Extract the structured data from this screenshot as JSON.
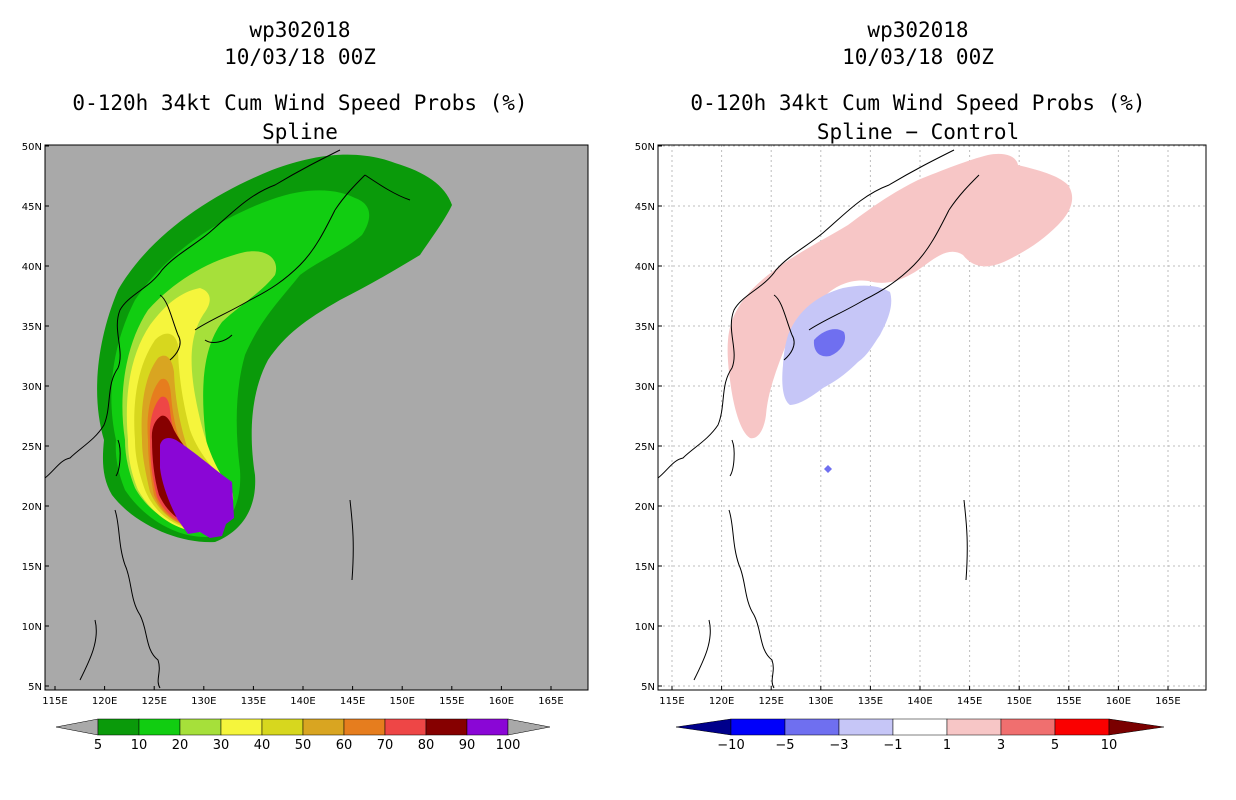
{
  "left": {
    "title_code": "wp302018",
    "title_date": "10/03/18 00Z",
    "title_product": "0-120h 34kt Cum Wind Speed Probs (%)",
    "title_sub": "Spline",
    "colorbar": {
      "labels": [
        "5",
        "10",
        "20",
        "30",
        "40",
        "50",
        "60",
        "70",
        "80",
        "90",
        "100"
      ],
      "colors": [
        "#0a9a0a",
        "#11cd11",
        "#a6e03a",
        "#f5f53c",
        "#d7d71e",
        "#d9a521",
        "#e67d1e",
        "#ee4646",
        "#860000",
        "#8a06d6"
      ],
      "end_color": "#a9a9a9"
    },
    "bg": "#a9a9a9"
  },
  "right": {
    "title_code": "wp302018",
    "title_date": "10/03/18 00Z",
    "title_product": "0-120h 34kt Cum Wind Speed Probs (%)",
    "title_sub": "Spline − Control",
    "colorbar": {
      "labels": [
        "−10",
        "−5",
        "−3",
        "−1",
        "1",
        "3",
        "5",
        "10"
      ],
      "colors": [
        "#0000fa",
        "#6f6ff0",
        "#c6c6f7",
        "#ffffff",
        "#f7c6c6",
        "#f06f6f",
        "#fa0000"
      ],
      "end_left": "#00008b",
      "end_right": "#7a0000"
    },
    "bg": "#ffffff"
  },
  "axes": {
    "lat_labels": [
      "50N",
      "45N",
      "40N",
      "35N",
      "30N",
      "25N",
      "20N",
      "15N",
      "10N",
      "5N"
    ],
    "lon_labels": [
      "115E",
      "120E",
      "125E",
      "130E",
      "135E",
      "140E",
      "145E",
      "150E",
      "155E",
      "160E",
      "165E"
    ]
  }
}
